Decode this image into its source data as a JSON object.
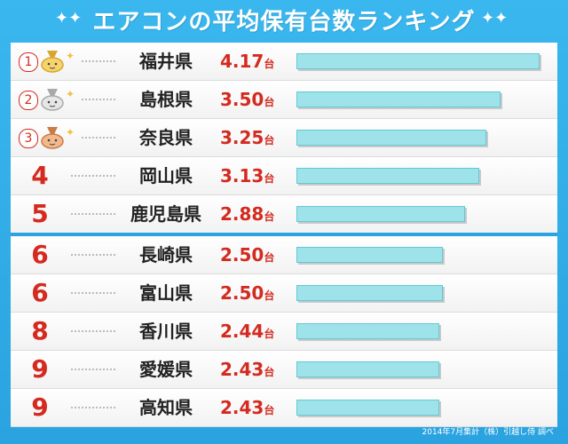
{
  "title": "エアコンの平均保有台数ランキング",
  "footer": "2014年7月集計（株）引越し侍 調べ",
  "colors": {
    "background": "#2aa3e0",
    "rank_text": "#d42a1f",
    "bar_fill": "#9fe3ea",
    "value_text": "#d42a1f"
  },
  "chart_data": {
    "type": "bar",
    "orientation": "horizontal",
    "unit": "台",
    "categories": [
      "福井県",
      "島根県",
      "奈良県",
      "岡山県",
      "鹿児島県",
      "長崎県",
      "富山県",
      "香川県",
      "愛媛県",
      "高知県"
    ],
    "ranks": [
      "1",
      "2",
      "3",
      "4",
      "5",
      "6",
      "6",
      "8",
      "9",
      "9"
    ],
    "values": [
      4.17,
      3.5,
      3.25,
      3.13,
      2.88,
      2.5,
      2.5,
      2.44,
      2.43,
      2.43
    ],
    "value_labels": [
      "4.17",
      "3.50",
      "3.25",
      "3.13",
      "2.88",
      "2.50",
      "2.50",
      "2.44",
      "2.43",
      "2.43"
    ],
    "medals": [
      "gold",
      "silver",
      "bronze",
      "",
      "",
      "",
      "",
      "",
      "",
      ""
    ]
  }
}
